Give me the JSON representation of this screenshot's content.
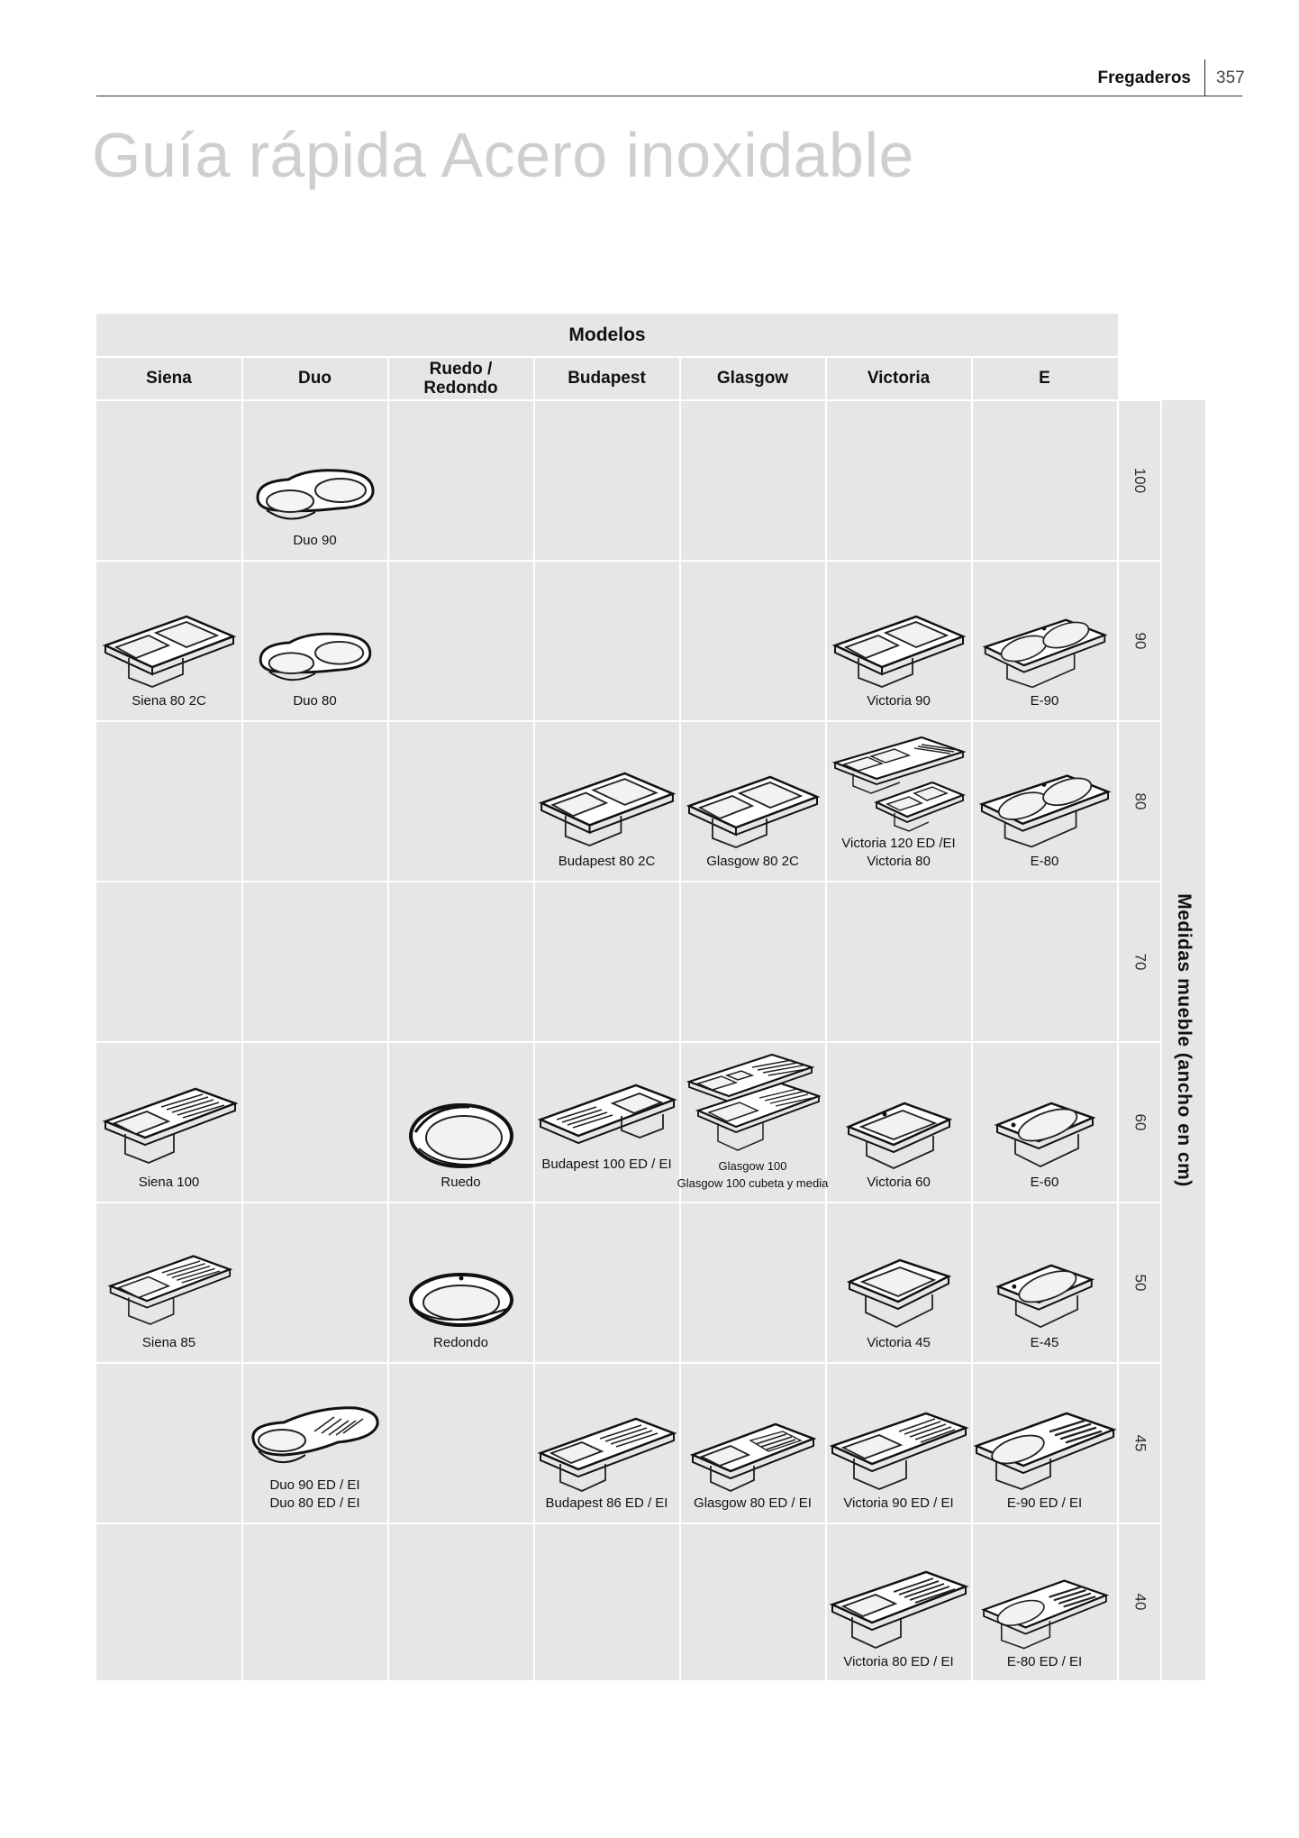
{
  "header": {
    "section": "Fregaderos",
    "page": "357"
  },
  "title": "Guía rápida Acero inoxidable",
  "table": {
    "top_header": "Modelos",
    "columns": [
      "Siena",
      "Duo",
      "Ruedo / Redondo",
      "Budapest",
      "Glasgow",
      "Victoria",
      "E"
    ],
    "sizes": [
      "100",
      "90",
      "80",
      "70",
      "60",
      "50",
      "45",
      "40"
    ],
    "side_label": "Medidas mueble (ancho en cm)",
    "captions": {
      "duo_90": "Duo 90",
      "siena_80_2c": "Siena 80 2C",
      "duo_80": "Duo 80",
      "victoria_90": "Victoria 90",
      "e_90": "E-90",
      "budapest_80_2c": "Budapest 80 2C",
      "glasgow_80_2c": "Glasgow 80 2C",
      "victoria_120_line1": "Victoria 120 ED /EI",
      "victoria_120_line2": "Victoria 80",
      "e_80": "E-80",
      "siena_100": "Siena 100",
      "ruedo": "Ruedo",
      "budapest_100": "Budapest 100 ED / EI",
      "glasgow_100_line1": "Glasgow 100",
      "glasgow_100_line2": "Glasgow 100 cubeta y media",
      "victoria_60": "Victoria 60",
      "e_60": "E-60",
      "siena_85": "Siena 85",
      "redondo": "Redondo",
      "victoria_45": "Victoria 45",
      "e_45": "E-45",
      "duo_ed_line1": "Duo 90 ED / EI",
      "duo_ed_line2": "Duo 80 ED / EI",
      "budapest_86": "Budapest 86 ED / EI",
      "glasgow_80_ed": "Glasgow 80 ED / EI",
      "victoria_90_ed": "Victoria 90 ED / EI",
      "e_90_ed": "E-90 ED / EI",
      "victoria_80_ed": "Victoria 80 ED / EI",
      "e_80_ed": "E-80 ED / EI"
    }
  }
}
